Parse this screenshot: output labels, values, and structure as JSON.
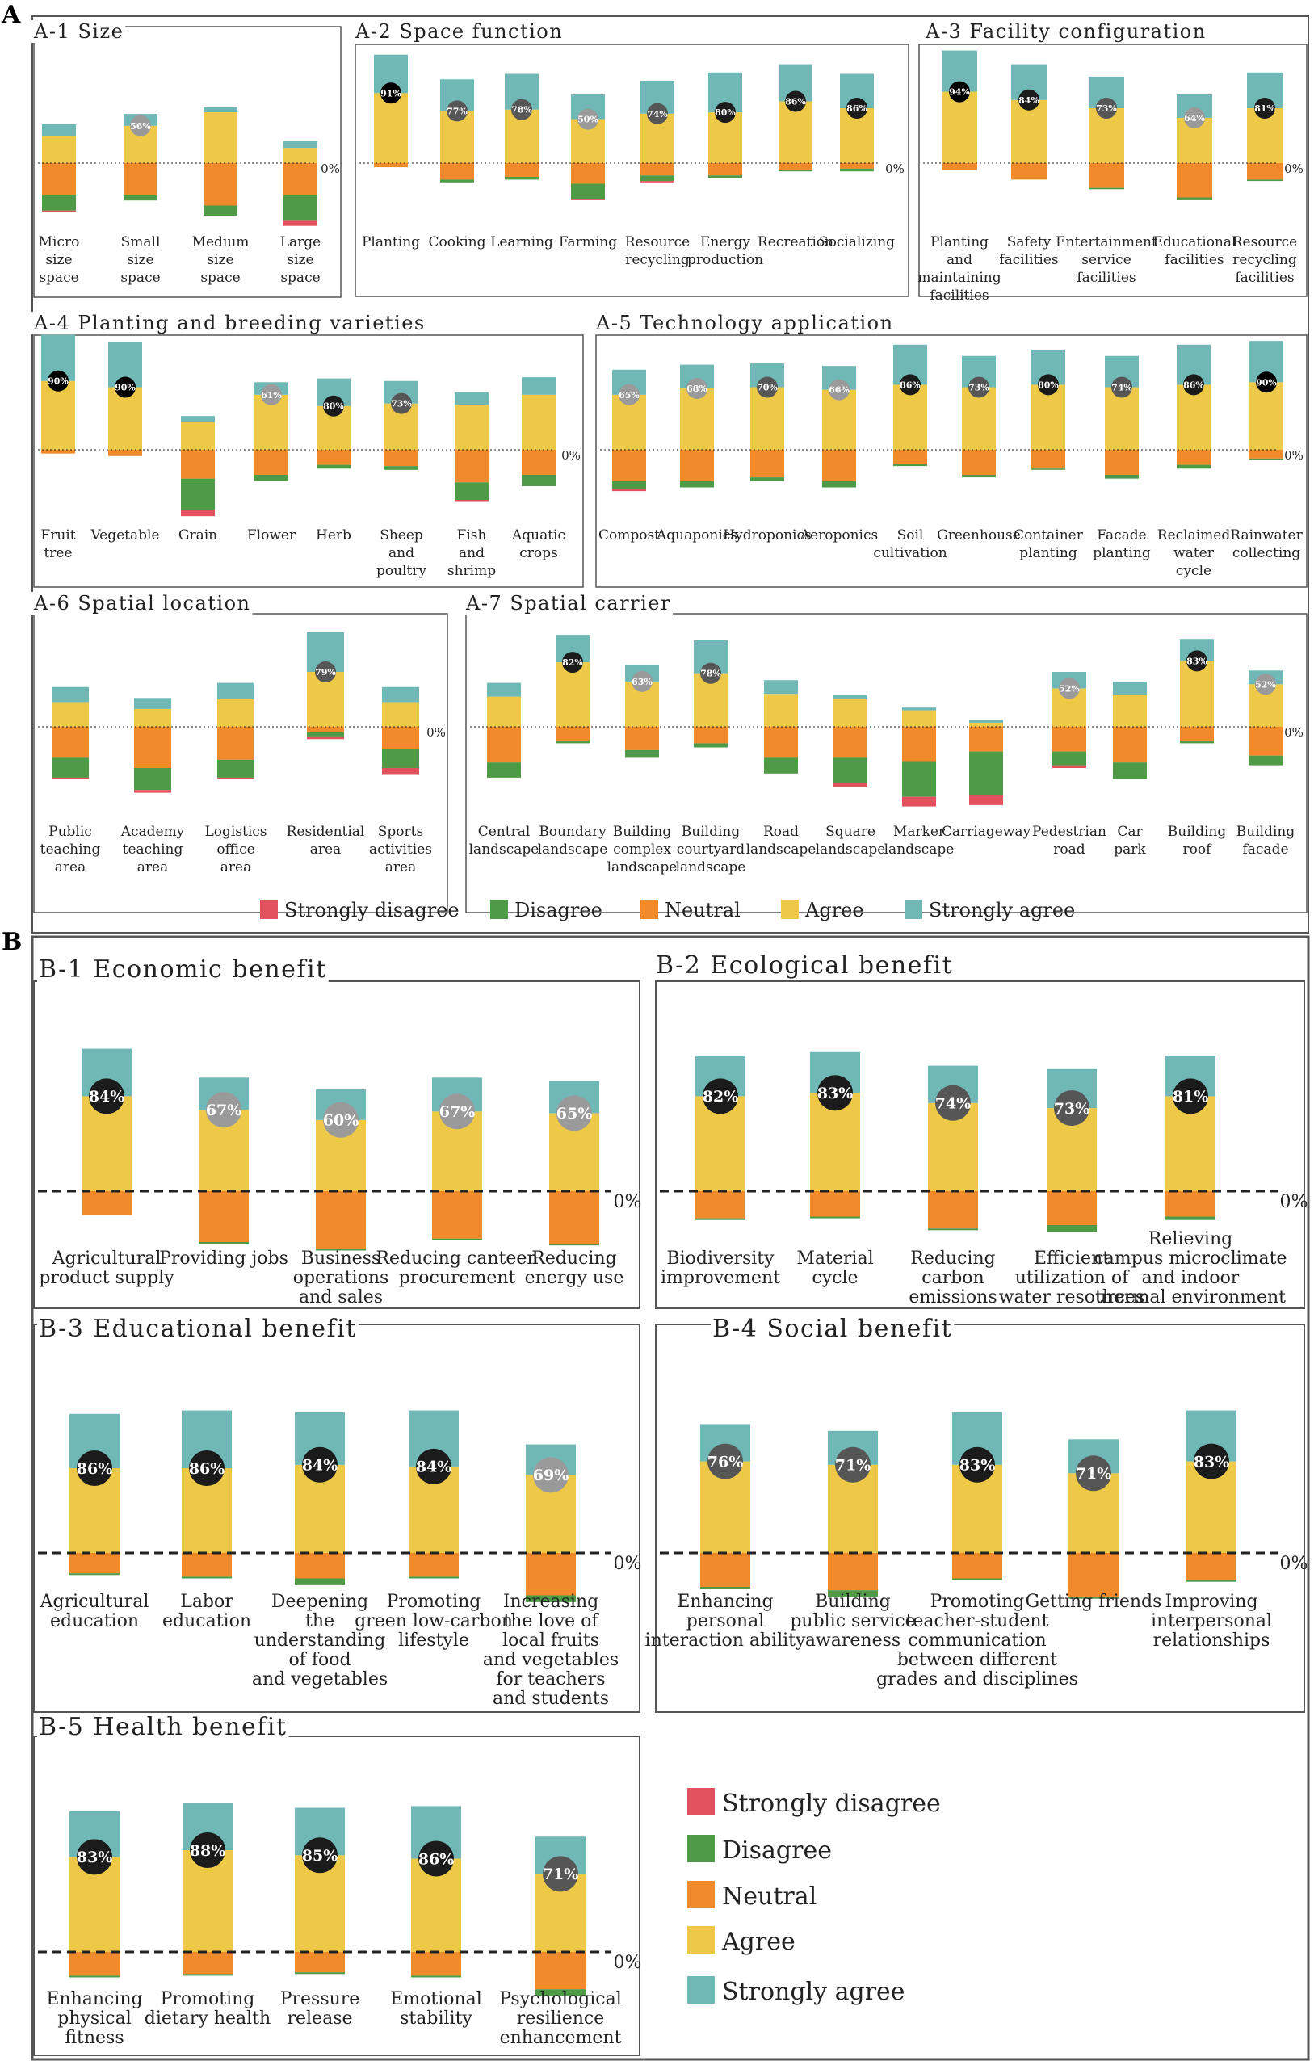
{
  "figure": {
    "section_a_label": "A",
    "section_b_label": "B",
    "zero_label": "0%",
    "legend": [
      "Strongly disagree",
      "Disagree",
      "Neutral",
      "Agree",
      "Strongly agree"
    ],
    "colors": {
      "strongly_disagree": "#E2525E",
      "disagree": "#4E9A47",
      "neutral": "#F08A2B",
      "agree": "#EEC948",
      "strongly_agree": "#6FB8B6",
      "badge_dark": "#1b1b1b",
      "badge_mid": "#565656",
      "badge_light": "#9a9a9a",
      "panel_border": "#555555"
    }
  },
  "chart_data": [
    {
      "id": "A-1",
      "title": "A-1 Size",
      "type": "bar",
      "stacked": "diverging",
      "categories": [
        "Micro size space",
        "Small size space",
        "Medium size space",
        "Large size space"
      ],
      "series": [
        {
          "name": "Strongly disagree",
          "values": [
            1,
            0,
            0,
            3
          ]
        },
        {
          "name": "Disagree",
          "values": [
            9,
            3,
            6,
            15
          ]
        },
        {
          "name": "Neutral",
          "values": [
            19,
            19,
            25,
            19
          ]
        },
        {
          "name": "Agree",
          "values": [
            16,
            22,
            30,
            9
          ]
        },
        {
          "name": "Strongly agree",
          "values": [
            7,
            7,
            3,
            4
          ]
        }
      ],
      "highlight": [
        null,
        "56%",
        null,
        null
      ]
    },
    {
      "id": "A-2",
      "title": "A-2 Space function",
      "type": "bar",
      "stacked": "diverging",
      "categories": [
        "Planting",
        "Cooking",
        "Learning",
        "Farming",
        "Resource recycling",
        "Energy production",
        "Recreation",
        "Socializing"
      ],
      "series": [
        {
          "name": "Strongly disagree",
          "values": [
            0,
            0,
            0,
            1,
            1,
            0,
            0,
            0
          ]
        },
        {
          "name": "Disagree",
          "values": [
            0,
            2,
            2,
            11,
            4,
            2,
            1,
            2
          ]
        },
        {
          "name": "Neutral",
          "values": [
            3,
            12,
            10,
            15,
            9,
            9,
            5,
            4
          ]
        },
        {
          "name": "Agree",
          "values": [
            51,
            38,
            39,
            32,
            36,
            37,
            45,
            40
          ]
        },
        {
          "name": "Strongly agree",
          "values": [
            28,
            23,
            26,
            18,
            24,
            29,
            27,
            25
          ]
        }
      ],
      "highlight": [
        "91%",
        "77%",
        "78%",
        "50%",
        "74%",
        "80%",
        "86%",
        "86%"
      ]
    },
    {
      "id": "A-3",
      "title": "A-3 Facility configuration",
      "type": "bar",
      "stacked": "diverging",
      "categories": [
        "Planting and maintaining facilities",
        "Safety facilities",
        "Entertainment service facilities",
        "Educational facilities",
        "Resource recycling facilities"
      ],
      "series": [
        {
          "name": "Strongly disagree",
          "values": [
            0,
            0,
            0,
            0,
            0
          ]
        },
        {
          "name": "Disagree",
          "values": [
            0,
            0,
            1,
            2,
            1
          ]
        },
        {
          "name": "Neutral",
          "values": [
            5,
            12,
            18,
            25,
            12
          ]
        },
        {
          "name": "Agree",
          "values": [
            52,
            46,
            40,
            33,
            40
          ]
        },
        {
          "name": "Strongly agree",
          "values": [
            30,
            26,
            23,
            17,
            26
          ]
        }
      ],
      "highlight": [
        "94%",
        "84%",
        "73%",
        "64%",
        "81%"
      ]
    },
    {
      "id": "A-4",
      "title": "A-4 Planting and breeding varieties",
      "type": "bar",
      "stacked": "diverging",
      "categories": [
        "Fruit tree",
        "Vegetable",
        "Grain",
        "Flower",
        "Herb",
        "Sheep and poultry",
        "Fish and shrimp",
        "Aquatic crops"
      ],
      "series": [
        {
          "name": "Strongly disagree",
          "values": [
            0,
            0,
            5,
            0,
            0,
            0,
            1,
            0
          ]
        },
        {
          "name": "Disagree",
          "values": [
            0,
            0,
            25,
            5,
            3,
            3,
            14,
            9
          ]
        },
        {
          "name": "Neutral",
          "values": [
            3,
            5,
            23,
            20,
            12,
            13,
            26,
            20
          ]
        },
        {
          "name": "Agree",
          "values": [
            55,
            50,
            22,
            44,
            35,
            37,
            36,
            44
          ]
        },
        {
          "name": "Strongly agree",
          "values": [
            37,
            36,
            5,
            10,
            22,
            18,
            10,
            14
          ]
        }
      ],
      "highlight": [
        "90%",
        "90%",
        null,
        "61%",
        "80%",
        "73%",
        null,
        null
      ]
    },
    {
      "id": "A-5",
      "title": "A-5 Technology application",
      "type": "bar",
      "stacked": "diverging",
      "categories": [
        "Compost",
        "Aquaponics",
        "Hydroponics",
        "Aeroponics",
        "Soil cultivation",
        "Greenhouse",
        "Container planting",
        "Facade planting",
        "Reclaimed water cycle",
        "Rainwater collecting"
      ],
      "series": [
        {
          "name": "Strongly disagree",
          "values": [
            2,
            0,
            0,
            0,
            0,
            0,
            0,
            0,
            0,
            0
          ]
        },
        {
          "name": "Disagree",
          "values": [
            6,
            5,
            3,
            5,
            2,
            2,
            1,
            3,
            3,
            1
          ]
        },
        {
          "name": "Neutral",
          "values": [
            25,
            25,
            22,
            25,
            11,
            20,
            15,
            20,
            12,
            7
          ]
        },
        {
          "name": "Agree",
          "values": [
            44,
            49,
            50,
            48,
            52,
            50,
            52,
            50,
            52,
            54
          ]
        },
        {
          "name": "Strongly agree",
          "values": [
            20,
            19,
            19,
            19,
            32,
            25,
            28,
            25,
            32,
            33
          ]
        }
      ],
      "highlight": [
        "65%",
        "68%",
        "70%",
        "66%",
        "86%",
        "73%",
        "80%",
        "74%",
        "86%",
        "90%"
      ]
    },
    {
      "id": "A-6",
      "title": "A-6 Spatial location",
      "type": "bar",
      "stacked": "diverging",
      "categories": [
        "Public teaching area",
        "Academy teaching area",
        "Logistics office area",
        "Residential area",
        "Sports activities area"
      ],
      "series": [
        {
          "name": "Strongly disagree",
          "values": [
            1,
            2,
            1,
            2,
            5
          ]
        },
        {
          "name": "Disagree",
          "values": [
            15,
            16,
            13,
            3,
            14
          ]
        },
        {
          "name": "Neutral",
          "values": [
            22,
            30,
            24,
            4,
            16
          ]
        },
        {
          "name": "Agree",
          "values": [
            18,
            13,
            20,
            40,
            18
          ]
        },
        {
          "name": "Strongly agree",
          "values": [
            11,
            8,
            12,
            29,
            11
          ]
        }
      ],
      "highlight": [
        null,
        null,
        null,
        "79%",
        null
      ]
    },
    {
      "id": "A-7",
      "title": "A-7 Spatial carrier",
      "type": "bar",
      "stacked": "diverging",
      "categories": [
        "Central landscape",
        "Boundary landscape",
        "Building complex landscape",
        "Building courtyard landscape",
        "Road landscape",
        "Square landscape",
        "Marker landscape",
        "Carriageway",
        "Pedestrian road",
        "Car park",
        "Building roof",
        "Building facade"
      ],
      "series": [
        {
          "name": "Strongly disagree",
          "values": [
            0,
            0,
            0,
            0,
            0,
            3,
            7,
            7,
            2,
            0,
            0,
            0
          ]
        },
        {
          "name": "Disagree",
          "values": [
            11,
            2,
            5,
            3,
            12,
            19,
            26,
            32,
            10,
            12,
            2,
            7
          ]
        },
        {
          "name": "Neutral",
          "values": [
            26,
            10,
            17,
            12,
            22,
            22,
            25,
            18,
            18,
            26,
            10,
            21
          ]
        },
        {
          "name": "Agree",
          "values": [
            22,
            47,
            33,
            39,
            24,
            20,
            12,
            3,
            28,
            23,
            48,
            31
          ]
        },
        {
          "name": "Strongly agree",
          "values": [
            10,
            20,
            12,
            24,
            10,
            3,
            2,
            2,
            12,
            10,
            16,
            10
          ]
        }
      ],
      "highlight": [
        null,
        "82%",
        "63%",
        "78%",
        null,
        null,
        null,
        null,
        "52%",
        null,
        "83%",
        "52%"
      ]
    },
    {
      "id": "B-1",
      "title": "B-1 Economic benefit",
      "type": "bar",
      "stacked": "diverging",
      "categories": [
        "Agricultural product supply",
        "Providing jobs",
        "Business operations and sales",
        "Reducing canteen procurement",
        "Reducing energy use"
      ],
      "series": [
        {
          "name": "Strongly disagree",
          "values": [
            0,
            0,
            0,
            0,
            0
          ]
        },
        {
          "name": "Disagree",
          "values": [
            0,
            1,
            1,
            1,
            1
          ]
        },
        {
          "name": "Neutral",
          "values": [
            14,
            30,
            34,
            28,
            31
          ]
        },
        {
          "name": "Agree",
          "values": [
            56,
            48,
            42,
            47,
            46
          ]
        },
        {
          "name": "Strongly agree",
          "values": [
            28,
            19,
            18,
            20,
            19
          ]
        }
      ],
      "highlight": [
        "84%",
        "67%",
        "60%",
        "67%",
        "65%"
      ]
    },
    {
      "id": "B-2",
      "title": "B-2 Ecological benefit",
      "type": "bar",
      "stacked": "diverging",
      "categories": [
        "Biodiversity improvement",
        "Material cycle",
        "Reducing carbon emissions",
        "Efficient utilization of water resources",
        "Relieving campus microclimate and indoor thermal environment"
      ],
      "series": [
        {
          "name": "Strongly disagree",
          "values": [
            0,
            0,
            0,
            0,
            0
          ]
        },
        {
          "name": "Disagree",
          "values": [
            1,
            1,
            1,
            4,
            2
          ]
        },
        {
          "name": "Neutral",
          "values": [
            16,
            15,
            22,
            20,
            15
          ]
        },
        {
          "name": "Agree",
          "values": [
            56,
            58,
            52,
            49,
            56
          ]
        },
        {
          "name": "Strongly agree",
          "values": [
            24,
            24,
            22,
            23,
            24
          ]
        }
      ],
      "highlight": [
        "82%",
        "83%",
        "74%",
        "73%",
        "81%"
      ]
    },
    {
      "id": "B-3",
      "title": "B-3 Educational benefit",
      "type": "bar",
      "stacked": "diverging",
      "categories": [
        "Agricultural education",
        "Labor education",
        "Deepening the understanding of food and vegetables",
        "Promoting green low-carbon lifestyle",
        "Increasing the love of local fruits and vegetables for teachers and students"
      ],
      "series": [
        {
          "name": "Strongly disagree",
          "values": [
            0,
            0,
            0,
            0,
            0
          ]
        },
        {
          "name": "Disagree",
          "values": [
            1,
            1,
            4,
            1,
            4
          ]
        },
        {
          "name": "Neutral",
          "values": [
            12,
            14,
            15,
            14,
            25
          ]
        },
        {
          "name": "Agree",
          "values": [
            50,
            50,
            52,
            51,
            46
          ]
        },
        {
          "name": "Strongly agree",
          "values": [
            32,
            34,
            31,
            33,
            18
          ]
        }
      ],
      "highlight": [
        "86%",
        "86%",
        "84%",
        "84%",
        "69%"
      ]
    },
    {
      "id": "B-4",
      "title": "B-4 Social benefit",
      "type": "bar",
      "stacked": "diverging",
      "categories": [
        "Enhancing personal interaction ability",
        "Building public service awareness",
        "Promoting teacher-student communication between different grades and disciplines",
        "Getting friends",
        "Improving interpersonal relationships"
      ],
      "series": [
        {
          "name": "Strongly disagree",
          "values": [
            0,
            0,
            0,
            0,
            0
          ]
        },
        {
          "name": "Disagree",
          "values": [
            1,
            4,
            1,
            1,
            1
          ]
        },
        {
          "name": "Neutral",
          "values": [
            20,
            22,
            15,
            26,
            16
          ]
        },
        {
          "name": "Agree",
          "values": [
            54,
            52,
            52,
            47,
            54
          ]
        },
        {
          "name": "Strongly agree",
          "values": [
            22,
            20,
            31,
            20,
            30
          ]
        }
      ],
      "highlight": [
        "76%",
        "71%",
        "83%",
        "71%",
        "83%"
      ]
    },
    {
      "id": "B-5",
      "title": "B-5 Health benefit",
      "type": "bar",
      "stacked": "diverging",
      "categories": [
        "Enhancing physical fitness",
        "Promoting dietary health",
        "Pressure release",
        "Emotional stability",
        "Psychological resilience enhancement"
      ],
      "series": [
        {
          "name": "Strongly disagree",
          "values": [
            0,
            0,
            0,
            0,
            0
          ]
        },
        {
          "name": "Disagree",
          "values": [
            1,
            1,
            1,
            1,
            4
          ]
        },
        {
          "name": "Neutral",
          "values": [
            14,
            13,
            12,
            14,
            22
          ]
        },
        {
          "name": "Agree",
          "values": [
            56,
            60,
            57,
            55,
            46
          ]
        },
        {
          "name": "Strongly agree",
          "values": [
            27,
            28,
            28,
            31,
            22
          ]
        }
      ],
      "highlight": [
        "83%",
        "88%",
        "85%",
        "86%",
        "71%"
      ]
    }
  ]
}
